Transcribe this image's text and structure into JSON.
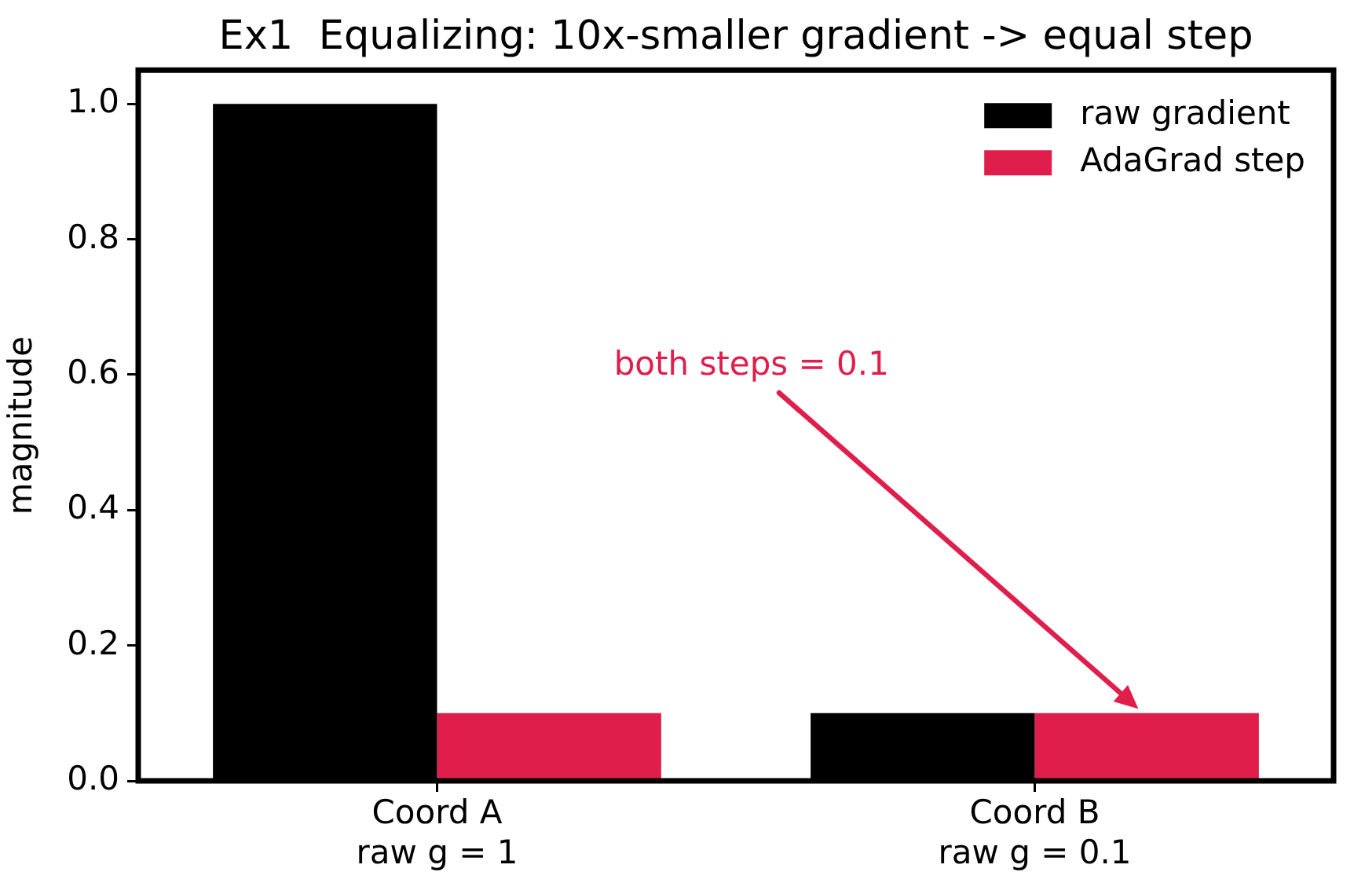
{
  "chart_data": {
    "type": "bar",
    "title": "Ex1  Equalizing: 10x-smaller gradient -> equal step",
    "ylabel": "magnitude",
    "categories": [
      "Coord A\nraw g = 1",
      "Coord B\nraw g = 0.1"
    ],
    "series": [
      {
        "name": "raw gradient",
        "color": "#000000",
        "values": [
          1,
          0.1
        ]
      },
      {
        "name": "AdaGrad step",
        "color": "#e01e4b",
        "values": [
          0.1,
          0.1
        ]
      }
    ],
    "ylim": [
      0,
      1.05
    ],
    "yticks": [
      {
        "value": 0,
        "label": "0.0"
      },
      0.2,
      0.4,
      0.6,
      0.8,
      {
        "value": 1,
        "label": "1.0"
      }
    ],
    "legend": "top right",
    "annotations": [
      "both steps = 0.1"
    ]
  }
}
